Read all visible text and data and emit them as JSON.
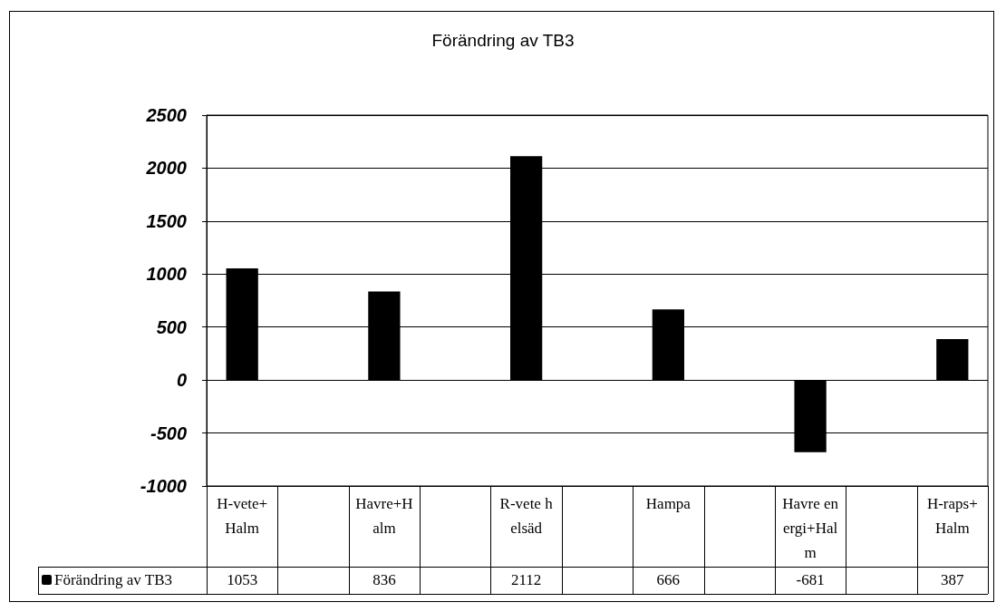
{
  "chart_data": {
    "type": "bar",
    "title": "Förändring av TB3",
    "categories": [
      "H-vete+Halm",
      null,
      "Havre+Halm",
      null,
      "R-vete helsäd",
      null,
      "Hampa",
      null,
      "Havre energi+Halm",
      null,
      "H-raps+Halm"
    ],
    "series": [
      {
        "name": "Förändring av TB3",
        "color": "#000000",
        "values": [
          1053,
          null,
          836,
          null,
          2112,
          null,
          666,
          null,
          -681,
          null,
          387
        ]
      }
    ],
    "ylim": [
      -1000,
      2500
    ],
    "yticks": [
      -1000,
      -500,
      0,
      500,
      1000,
      1500,
      2000,
      2500
    ],
    "grid": "y",
    "legend": "bottom left",
    "data_labels": true
  }
}
